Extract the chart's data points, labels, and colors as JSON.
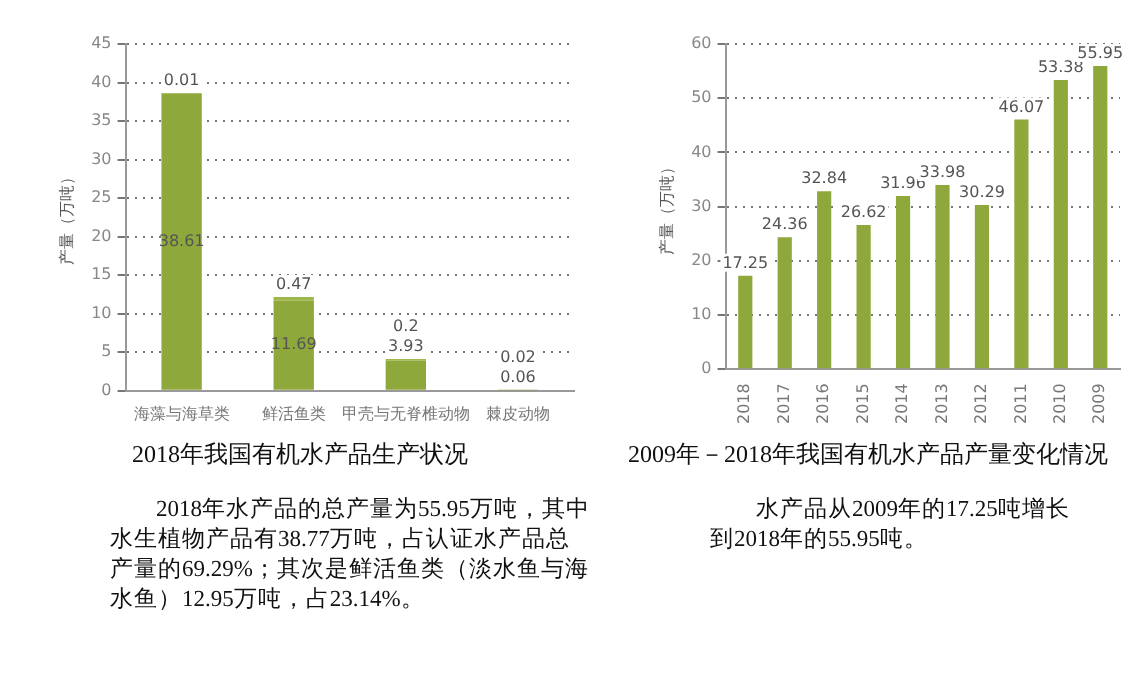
{
  "chart_data": [
    {
      "type": "bar",
      "title": "2018年我国有机水产品生产状况",
      "ylabel": "产量（万吨）",
      "categories": [
        "海藻与海草类",
        "鲜活鱼类",
        "甲壳与无脊椎动物",
        "棘皮动物"
      ],
      "stacked": true,
      "data_labels": true,
      "ylim": [
        0,
        45
      ],
      "yticks": [
        0,
        5,
        10,
        15,
        20,
        25,
        30,
        35,
        40,
        45
      ],
      "grid": "y",
      "legend": false,
      "series": [
        {
          "color": "#8fa83c",
          "values": [
            38.61,
            11.69,
            3.93,
            0.06
          ]
        },
        {
          "color": "#9fb84c",
          "values": [
            0.01,
            0.47,
            0.2,
            0.02
          ]
        }
      ],
      "annotations": [
        "2018年水产品的总产量为55.95万吨，其中水生植物产品有38.77万吨，占认证水产品总产量的69.29%；其次是鲜活鱼类（淡水鱼与海水鱼）12.95万吨，占23.14%。"
      ]
    },
    {
      "type": "bar",
      "title": "2009年－2018年我国有机水产品产量变化情况",
      "ylabel": "产量（万吨）",
      "categories": [
        "2018",
        "2017",
        "2016",
        "2015",
        "2014",
        "2013",
        "2012",
        "2011",
        "2010",
        "2009"
      ],
      "data_labels": true,
      "ylim": [
        0,
        60
      ],
      "yticks": [
        0,
        10,
        20,
        30,
        40,
        50,
        60
      ],
      "grid": "y",
      "legend": false,
      "series": [
        {
          "color": "#8fa83c",
          "values": [
            17.25,
            24.36,
            32.84,
            26.62,
            31.96,
            33.98,
            30.29,
            46.07,
            53.38,
            55.95
          ]
        }
      ],
      "annotations": [
        "水产品从2009年的17.25吨增长到2018年的55.95吨。"
      ]
    }
  ]
}
